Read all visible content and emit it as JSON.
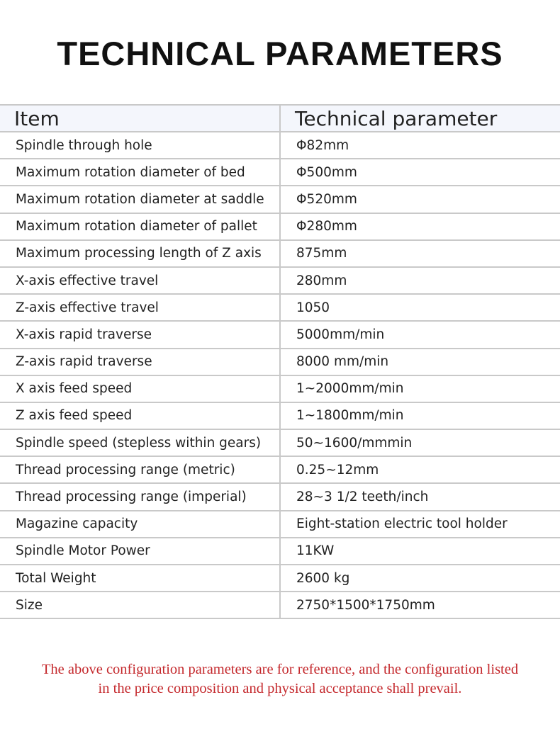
{
  "title": "TECHNICAL PARAMETERS",
  "table": {
    "headers": [
      "Item",
      "Technical parameter"
    ],
    "rows": [
      [
        "Spindle through hole",
        "Φ82mm"
      ],
      [
        "Maximum rotation diameter of bed",
        "Φ500mm"
      ],
      [
        "Maximum rotation diameter at saddle",
        "Φ520mm"
      ],
      [
        "Maximum rotation diameter of pallet",
        "Φ280mm"
      ],
      [
        "Maximum processing length of Z axis",
        "875mm"
      ],
      [
        "X-axis effective travel",
        "280mm"
      ],
      [
        "Z-axis effective travel",
        "1050"
      ],
      [
        "X-axis rapid traverse",
        "5000mm/min"
      ],
      [
        "Z-axis rapid traverse",
        "8000 mm/min"
      ],
      [
        "X axis feed speed",
        "1~2000mm/min"
      ],
      [
        "Z axis feed speed",
        "1~1800mm/min"
      ],
      [
        "Spindle speed (stepless within gears)",
        "50~1600/mmmin"
      ],
      [
        "Thread processing range (metric)",
        "0.25~12mm"
      ],
      [
        "Thread processing range (imperial)",
        "28~3 1/2 teeth/inch"
      ],
      [
        "Magazine capacity",
        "Eight-station electric tool holder"
      ],
      [
        "Spindle Motor Power",
        "11KW"
      ],
      [
        "Total Weight",
        "2600 kg"
      ],
      [
        "Size",
        "2750*1500*1750mm"
      ]
    ]
  },
  "note": {
    "line1": "The above configuration parameters are for reference, and the configuration listed",
    "line2": "in the price composition and physical acceptance shall prevail."
  },
  "colors": {
    "note": "#c4282c",
    "header_bg": "#f4f6fc"
  }
}
